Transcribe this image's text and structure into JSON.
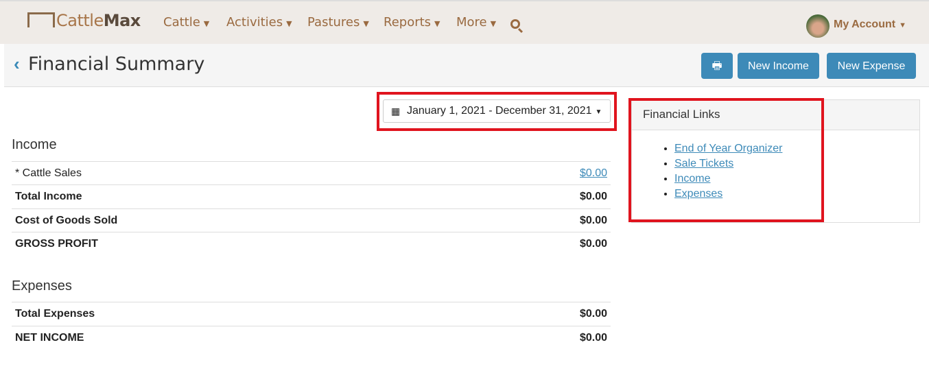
{
  "nav": {
    "logo": {
      "prefix": "Cattle",
      "suffix": "Max"
    },
    "menus": [
      "Cattle",
      "Activities",
      "Pastures",
      "Reports",
      "More"
    ],
    "account": "My Account"
  },
  "header": {
    "title": "Financial Summary",
    "new_income": "New Income",
    "new_expense": "New Expense"
  },
  "date_range": "January 1, 2021 - December 31, 2021",
  "income": {
    "heading": "Income",
    "rows": [
      {
        "label": "* Cattle Sales",
        "value": "$0.00"
      },
      {
        "label": "Total Income",
        "value": "$0.00"
      },
      {
        "label": "Cost of Goods Sold",
        "value": "$0.00"
      },
      {
        "label": "GROSS PROFIT",
        "value": "$0.00"
      }
    ]
  },
  "expenses": {
    "heading": "Expenses",
    "rows": [
      {
        "label": "Total Expenses",
        "value": "$0.00"
      },
      {
        "label": "NET INCOME",
        "value": "$0.00"
      }
    ]
  },
  "links": {
    "title": "Financial Links",
    "items": [
      "End of Year Organizer",
      "Sale Tickets",
      "Income",
      "Expenses"
    ]
  },
  "colors": {
    "accent": "#3d8ab8",
    "nav_text": "#9a6a40",
    "highlight": "#e0141e"
  }
}
